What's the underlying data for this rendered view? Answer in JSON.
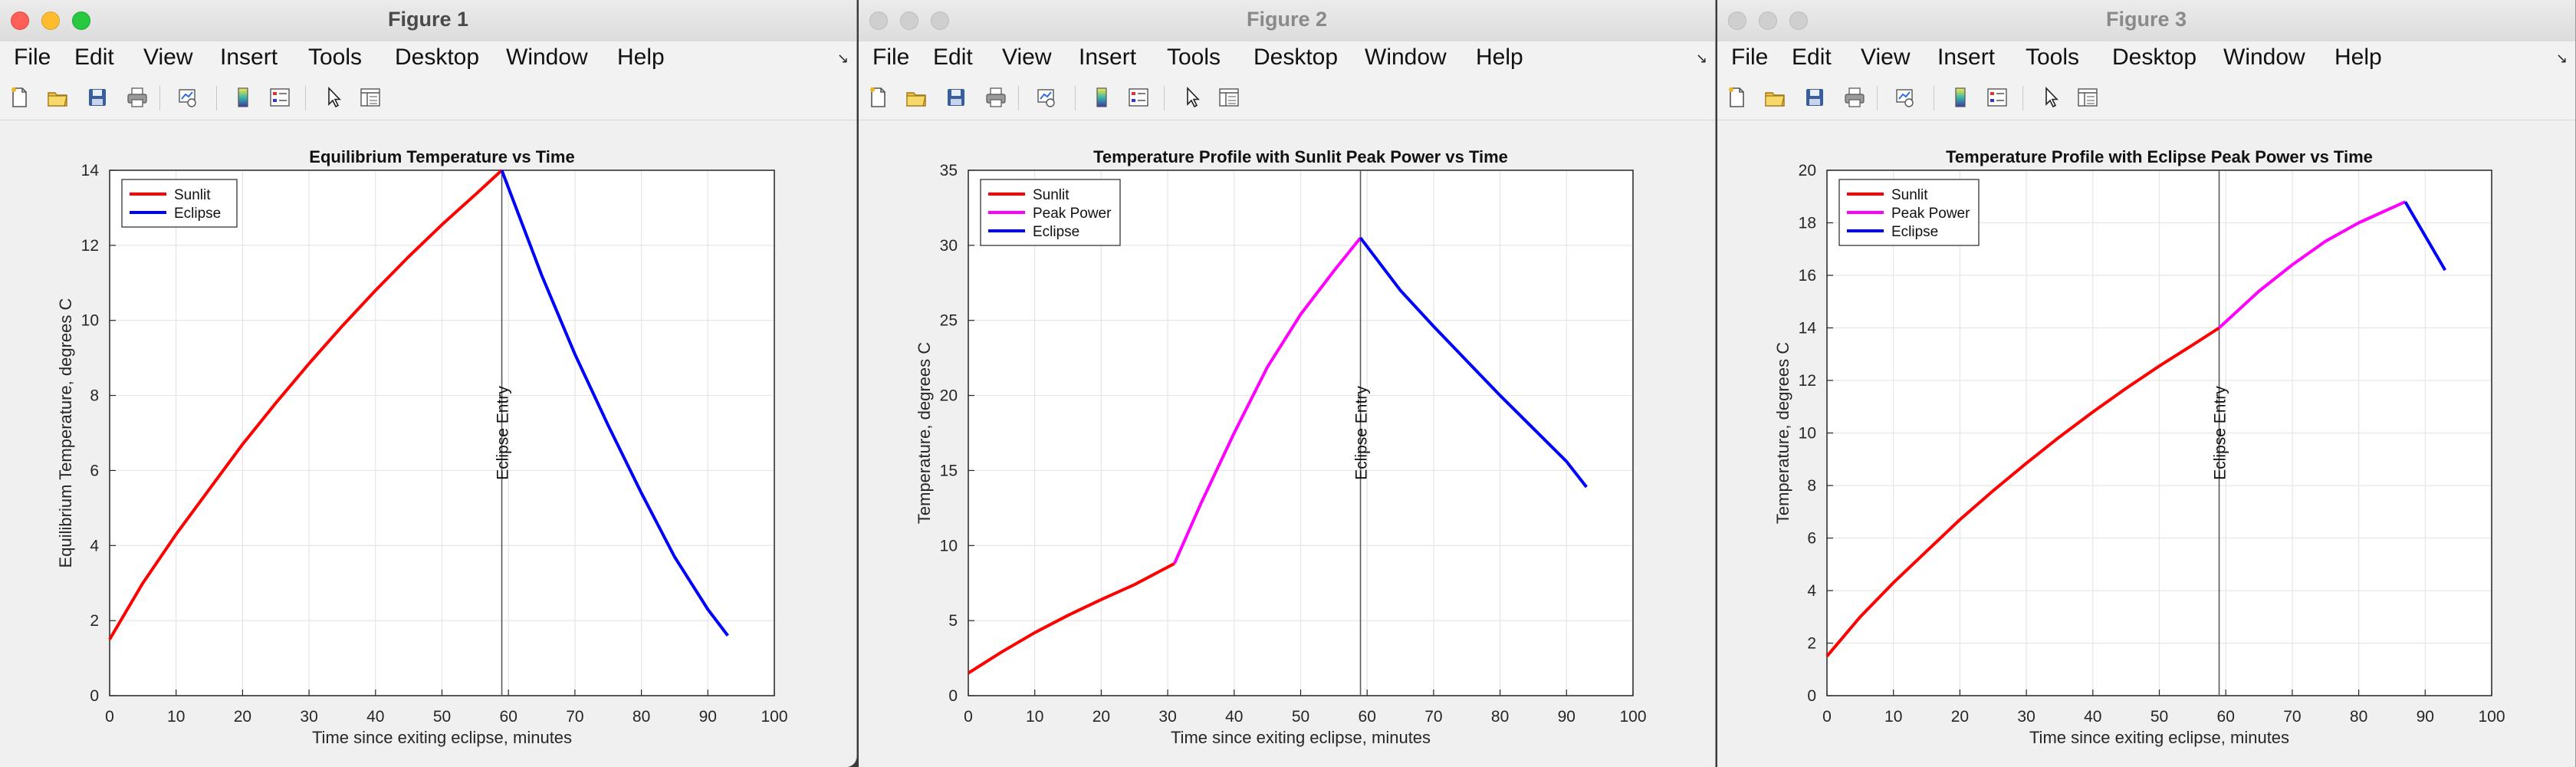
{
  "menu_labels": [
    "File",
    "Edit",
    "View",
    "Insert",
    "Tools",
    "Desktop",
    "Window",
    "Help"
  ],
  "windows": [
    {
      "title": "Figure 1",
      "chart_data": {
        "type": "line",
        "title": "Equilibrium Temperature vs Time",
        "xlabel": "Time since exiting eclipse, minutes",
        "ylabel": "Equilibrium Temperature, degrees C",
        "xlim": [
          0,
          100
        ],
        "ylim": [
          0,
          14
        ],
        "xticks": [
          0,
          10,
          20,
          30,
          40,
          50,
          60,
          70,
          80,
          90,
          100
        ],
        "yticks": [
          0,
          2,
          4,
          6,
          8,
          10,
          12,
          14
        ],
        "grid": true,
        "legend_position": "top-left",
        "annotation": {
          "text": "Eclipse Entry",
          "x": 59
        },
        "series": [
          {
            "name": "Sunlit",
            "color": "#ff0000",
            "x": [
              0,
              5,
              10,
              15,
              20,
              25,
              30,
              35,
              40,
              45,
              50,
              55,
              59
            ],
            "y": [
              1.5,
              3.0,
              4.3,
              5.5,
              6.7,
              7.8,
              8.85,
              9.85,
              10.8,
              11.7,
              12.55,
              13.35,
              14.0
            ]
          },
          {
            "name": "Eclipse",
            "color": "#0000ff",
            "x": [
              59,
              65,
              70,
              75,
              80,
              85,
              90,
              93
            ],
            "y": [
              14.0,
              11.2,
              9.1,
              7.2,
              5.4,
              3.7,
              2.3,
              1.6
            ]
          }
        ]
      }
    },
    {
      "title": "Figure 2",
      "chart_data": {
        "type": "line",
        "title": "Temperature Profile with Sunlit Peak Power vs Time",
        "xlabel": "Time since exiting eclipse, minutes",
        "ylabel": "Temperature, degrees C",
        "xlim": [
          0,
          100
        ],
        "ylim": [
          0,
          35
        ],
        "xticks": [
          0,
          10,
          20,
          30,
          40,
          50,
          60,
          70,
          80,
          90,
          100
        ],
        "yticks": [
          0,
          5,
          10,
          15,
          20,
          25,
          30,
          35
        ],
        "grid": true,
        "legend_position": "top-left",
        "annotation": {
          "text": "Eclipse Entry",
          "x": 59
        },
        "series": [
          {
            "name": "Sunlit",
            "color": "#ff0000",
            "x": [
              0,
              5,
              10,
              15,
              20,
              25,
              31
            ],
            "y": [
              1.5,
              2.9,
              4.2,
              5.35,
              6.4,
              7.4,
              8.8
            ]
          },
          {
            "name": "Peak Power",
            "color": "#ff00ff",
            "x": [
              31,
              35,
              40,
              45,
              50,
              55,
              59
            ],
            "y": [
              8.8,
              12.8,
              17.5,
              21.9,
              25.4,
              28.3,
              30.5
            ]
          },
          {
            "name": "Eclipse",
            "color": "#0000ff",
            "x": [
              59,
              65,
              70,
              75,
              80,
              85,
              90,
              93
            ],
            "y": [
              30.5,
              27.0,
              24.6,
              22.3,
              20.0,
              17.8,
              15.6,
              13.9
            ]
          }
        ]
      }
    },
    {
      "title": "Figure 3",
      "chart_data": {
        "type": "line",
        "title": "Temperature Profile with Eclipse Peak Power vs Time",
        "xlabel": "Time since exiting eclipse, minutes",
        "ylabel": "Temperature, degrees C",
        "xlim": [
          0,
          100
        ],
        "ylim": [
          0,
          20
        ],
        "xticks": [
          0,
          10,
          20,
          30,
          40,
          50,
          60,
          70,
          80,
          90,
          100
        ],
        "yticks": [
          0,
          2,
          4,
          6,
          8,
          10,
          12,
          14,
          16,
          18,
          20
        ],
        "grid": true,
        "legend_position": "top-left",
        "annotation": {
          "text": "Eclipse Entry",
          "x": 59
        },
        "series": [
          {
            "name": "Sunlit",
            "color": "#ff0000",
            "x": [
              0,
              5,
              10,
              15,
              20,
              25,
              30,
              35,
              40,
              45,
              50,
              55,
              59
            ],
            "y": [
              1.5,
              3.0,
              4.3,
              5.5,
              6.7,
              7.8,
              8.85,
              9.85,
              10.8,
              11.7,
              12.55,
              13.35,
              14.0
            ]
          },
          {
            "name": "Peak Power",
            "color": "#ff00ff",
            "x": [
              59,
              65,
              70,
              75,
              80,
              87
            ],
            "y": [
              14.0,
              15.4,
              16.4,
              17.3,
              18.0,
              18.8
            ]
          },
          {
            "name": "Eclipse",
            "color": "#0000ff",
            "x": [
              87,
              90,
              93
            ],
            "y": [
              18.8,
              17.5,
              16.2
            ]
          }
        ]
      }
    }
  ]
}
